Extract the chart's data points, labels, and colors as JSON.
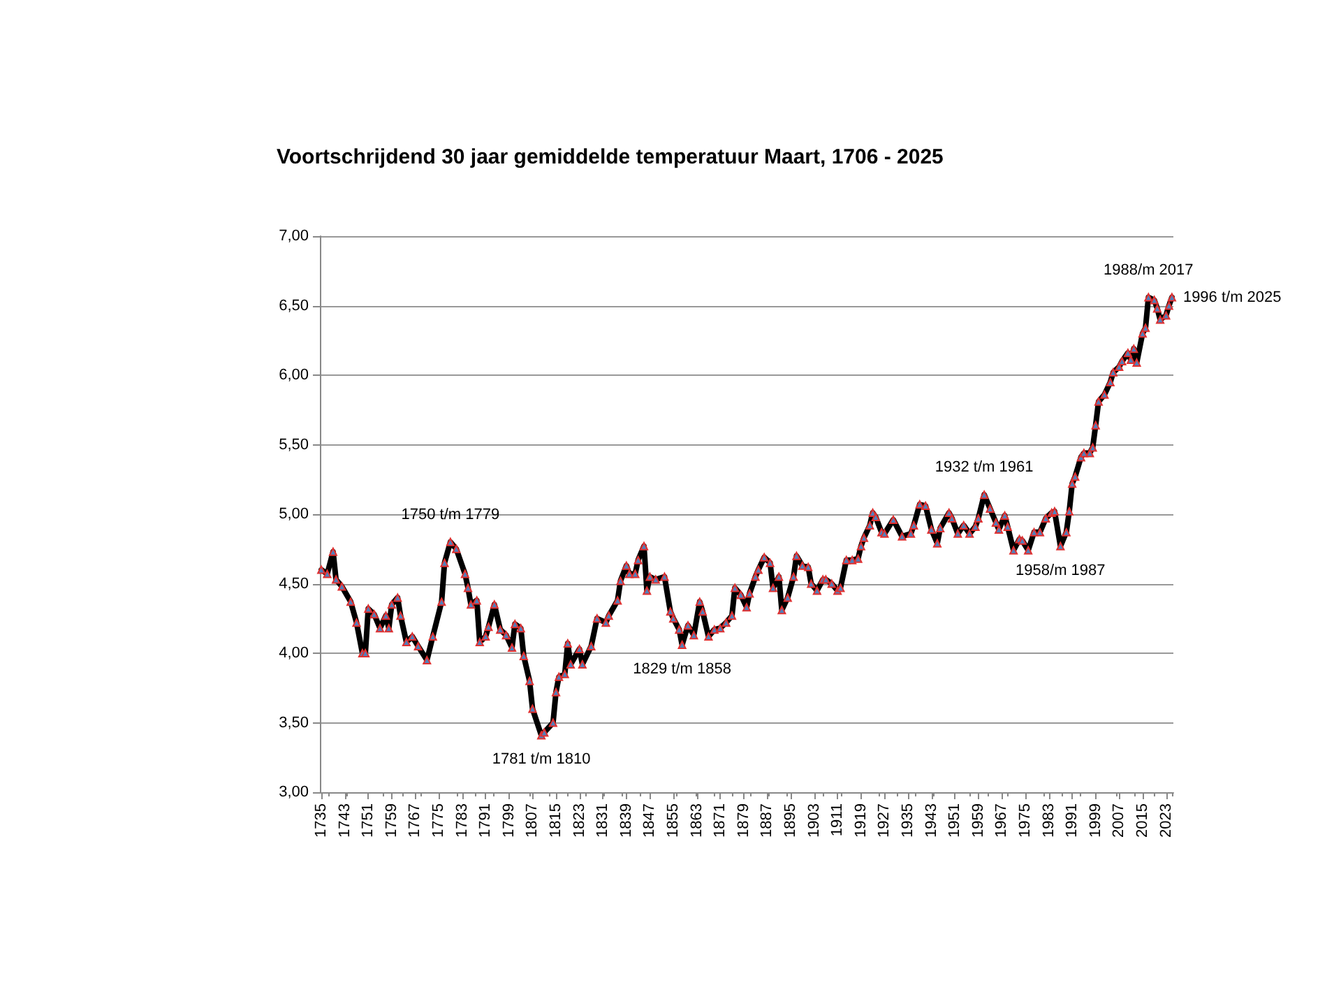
{
  "chart_data": {
    "type": "line",
    "title": "Voortschrijdend 30 jaar gemiddelde temperatuur Maart, 1706 - 2025",
    "x": [
      1735,
      1737,
      1739,
      1740,
      1742,
      1745,
      1747,
      1749,
      1750,
      1751,
      1753,
      1755,
      1757,
      1758,
      1759,
      1761,
      1762,
      1764,
      1766,
      1768,
      1771,
      1773,
      1776,
      1777,
      1779,
      1781,
      1784,
      1785,
      1786,
      1788,
      1789,
      1791,
      1792,
      1794,
      1796,
      1798,
      1800,
      1801,
      1803,
      1804,
      1806,
      1807,
      1810,
      1811,
      1814,
      1815,
      1816,
      1818,
      1819,
      1820,
      1823,
      1824,
      1827,
      1829,
      1832,
      1833,
      1836,
      1837,
      1839,
      1840,
      1842,
      1843,
      1845,
      1846,
      1847,
      1849,
      1852,
      1854,
      1855,
      1857,
      1858,
      1860,
      1862,
      1864,
      1865,
      1867,
      1869,
      1871,
      1873,
      1875,
      1876,
      1878,
      1880,
      1881,
      1883,
      1884,
      1886,
      1888,
      1889,
      1891,
      1892,
      1894,
      1896,
      1897,
      1899,
      1901,
      1902,
      1904,
      1906,
      1907,
      1909,
      1911,
      1912,
      1914,
      1916,
      1918,
      1919,
      1920,
      1922,
      1923,
      1924,
      1926,
      1927,
      1930,
      1933,
      1936,
      1937,
      1939,
      1941,
      1943,
      1945,
      1946,
      1949,
      1950,
      1952,
      1954,
      1956,
      1958,
      1959,
      1961,
      1963,
      1965,
      1966,
      1968,
      1969,
      1971,
      1973,
      1974,
      1976,
      1978,
      1980,
      1982,
      1984,
      1985,
      1987,
      1989,
      1990,
      1991,
      1992,
      1994,
      1995,
      1997,
      1998,
      1999,
      2000,
      2002,
      2004,
      2005,
      2007,
      2008,
      2010,
      2011,
      2012,
      2013,
      2015,
      2016,
      2017,
      2019,
      2020,
      2021,
      2023,
      2024,
      2025
    ],
    "series": [
      {
        "color": "#000000",
        "values": [
          4.6,
          4.57,
          4.73,
          4.53,
          4.48,
          4.37,
          4.22,
          4.0,
          4.0,
          4.32,
          4.28,
          4.18,
          4.27,
          4.18,
          4.35,
          4.4,
          4.27,
          4.08,
          4.12,
          4.05,
          3.95,
          4.12,
          4.37,
          4.65,
          4.8,
          4.75,
          4.57,
          4.47,
          4.35,
          4.38,
          4.08,
          4.12,
          4.19,
          4.35,
          4.17,
          4.13,
          4.04,
          4.21,
          4.18,
          3.98,
          3.8,
          3.6,
          3.41,
          3.43,
          3.5,
          3.72,
          3.83,
          3.85,
          4.07,
          3.92,
          4.03,
          3.92,
          4.05,
          4.25,
          4.22,
          4.27,
          4.38,
          4.52,
          4.63,
          4.57,
          4.57,
          4.67,
          4.77,
          4.45,
          4.55,
          4.53,
          4.55,
          4.3,
          4.25,
          4.17,
          4.06,
          4.2,
          4.13,
          4.37,
          4.3,
          4.12,
          4.17,
          4.18,
          4.22,
          4.27,
          4.47,
          4.42,
          4.33,
          4.43,
          4.55,
          4.6,
          4.69,
          4.65,
          4.47,
          4.55,
          4.31,
          4.4,
          4.55,
          4.7,
          4.63,
          4.62,
          4.5,
          4.45,
          4.53,
          4.53,
          4.5,
          4.45,
          4.47,
          4.67,
          4.67,
          4.68,
          4.77,
          4.83,
          4.92,
          5.01,
          4.98,
          4.87,
          4.86,
          4.96,
          4.84,
          4.86,
          4.92,
          5.07,
          5.06,
          4.89,
          4.79,
          4.9,
          5.01,
          4.97,
          4.86,
          4.92,
          4.86,
          4.91,
          4.97,
          5.14,
          5.04,
          4.94,
          4.89,
          4.99,
          4.91,
          4.74,
          4.82,
          4.81,
          4.74,
          4.87,
          4.87,
          4.97,
          5.01,
          5.02,
          4.77,
          4.87,
          5.02,
          5.22,
          5.27,
          5.41,
          5.44,
          5.44,
          5.48,
          5.64,
          5.81,
          5.86,
          5.95,
          6.02,
          6.06,
          6.1,
          6.16,
          6.11,
          6.19,
          6.09,
          6.3,
          6.34,
          6.56,
          6.54,
          6.48,
          6.4,
          6.43,
          6.5,
          6.56
        ]
      }
    ],
    "xlim": [
      1734.5,
      2025.5
    ],
    "xticks": [
      1735,
      1743,
      1751,
      1759,
      1767,
      1775,
      1783,
      1791,
      1799,
      1807,
      1815,
      1823,
      1831,
      1839,
      1847,
      1855,
      1863,
      1871,
      1879,
      1887,
      1895,
      1903,
      1911,
      1919,
      1927,
      1935,
      1943,
      1951,
      1959,
      1967,
      1975,
      1983,
      1991,
      1999,
      2007,
      2015,
      2023
    ],
    "ylim": [
      3,
      7
    ],
    "yticks": [
      {
        "value": 3,
        "label": "3,00"
      },
      {
        "value": 3.5,
        "label": "3,50"
      },
      {
        "value": 4,
        "label": "4,00"
      },
      {
        "value": 4.5,
        "label": "4,50"
      },
      {
        "value": 5,
        "label": "5,00"
      },
      {
        "value": 5.5,
        "label": "5,50"
      },
      {
        "value": 6,
        "label": "6,00"
      },
      {
        "value": 6.5,
        "label": "6,50"
      },
      {
        "value": 7,
        "label": "7,00"
      }
    ],
    "grid": "y",
    "marker": "triangle",
    "annotations": [
      {
        "text": "1750 t/m 1779",
        "x": 1779,
        "y": 4.8
      },
      {
        "text": "1781 t/m 1810",
        "x": 1810,
        "y": 3.41
      },
      {
        "text": "1829 t/m 1858",
        "x": 1858,
        "y": 4.06
      },
      {
        "text": "1932 t/m 1961",
        "x": 1961,
        "y": 5.14
      },
      {
        "text": "1958/m 1987",
        "x": 1987,
        "y": 4.77
      },
      {
        "text": "1988/m 2017",
        "x": 2017,
        "y": 6.56
      },
      {
        "text": "1996 t/m 2025",
        "x": 2025,
        "y": 6.56
      }
    ]
  }
}
